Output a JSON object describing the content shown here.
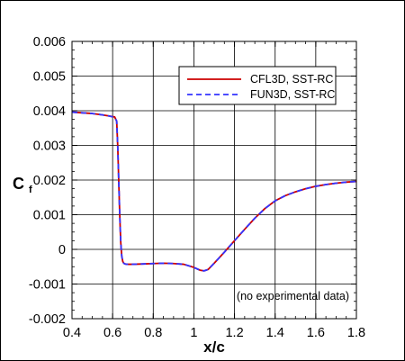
{
  "chart_data": {
    "type": "line",
    "xlabel": "x/c",
    "ylabel_main": "C",
    "ylabel_sub": "f",
    "xlim": [
      0.4,
      1.8
    ],
    "ylim": [
      -0.002,
      0.006
    ],
    "x_ticks": [
      0.4,
      0.6,
      0.8,
      1,
      1.2,
      1.4,
      1.6,
      1.8
    ],
    "x_tick_labels": [
      "0.4",
      "0.6",
      "0.8",
      "1",
      "1.2",
      "1.4",
      "1.6",
      "1.8"
    ],
    "y_ticks": [
      -0.002,
      -0.001,
      0,
      0.001,
      0.002,
      0.003,
      0.004,
      0.005,
      0.006
    ],
    "y_tick_labels": [
      "-0.002",
      "-0.001",
      "0",
      "0.001",
      "0.002",
      "0.003",
      "0.004",
      "0.005",
      "0.006"
    ],
    "grid": true,
    "legend_position": "top-right",
    "annotation": "(no experimental data)",
    "series": [
      {
        "name": "CFL3D, SST-RC",
        "color": "#cc0000",
        "style": "solid",
        "x": [
          0.4,
          0.45,
          0.5,
          0.55,
          0.58,
          0.61,
          0.62,
          0.625,
          0.63,
          0.635,
          0.64,
          0.645,
          0.65,
          0.655,
          0.66,
          0.67,
          0.7,
          0.75,
          0.8,
          0.85,
          0.9,
          0.95,
          1.0,
          1.03,
          1.05,
          1.07,
          1.1,
          1.15,
          1.2,
          1.25,
          1.3,
          1.35,
          1.4,
          1.45,
          1.5,
          1.55,
          1.6,
          1.65,
          1.7,
          1.75,
          1.8
        ],
        "y": [
          0.00396,
          0.00394,
          0.00392,
          0.00388,
          0.00385,
          0.00382,
          0.0037,
          0.003,
          0.002,
          0.001,
          0.0002,
          -0.0002,
          -0.00035,
          -0.0004,
          -0.00042,
          -0.00043,
          -0.00043,
          -0.00042,
          -0.00041,
          -0.0004,
          -0.00041,
          -0.00043,
          -0.00052,
          -0.0006,
          -0.00062,
          -0.00058,
          -0.0004,
          -8e-05,
          0.00025,
          0.00058,
          0.0009,
          0.00118,
          0.0014,
          0.00155,
          0.00166,
          0.00175,
          0.00182,
          0.00187,
          0.00191,
          0.00194,
          0.00196
        ]
      },
      {
        "name": "FUN3D, SST-RC",
        "color": "#3333ff",
        "style": "dashed",
        "x": [
          0.4,
          0.45,
          0.5,
          0.55,
          0.58,
          0.61,
          0.62,
          0.625,
          0.63,
          0.635,
          0.64,
          0.645,
          0.65,
          0.655,
          0.66,
          0.67,
          0.7,
          0.75,
          0.8,
          0.85,
          0.9,
          0.95,
          1.0,
          1.03,
          1.05,
          1.07,
          1.1,
          1.15,
          1.2,
          1.25,
          1.3,
          1.35,
          1.4,
          1.45,
          1.5,
          1.55,
          1.6,
          1.65,
          1.7,
          1.75,
          1.8
        ],
        "y": [
          0.00396,
          0.00394,
          0.00392,
          0.00388,
          0.00385,
          0.00381,
          0.0037,
          0.003,
          0.002,
          0.001,
          0.0002,
          -0.0002,
          -0.00035,
          -0.0004,
          -0.00042,
          -0.00043,
          -0.00043,
          -0.00042,
          -0.00041,
          -0.0004,
          -0.00041,
          -0.00043,
          -0.00052,
          -0.0006,
          -0.00062,
          -0.00058,
          -0.0004,
          -8e-05,
          0.00025,
          0.00058,
          0.0009,
          0.00118,
          0.0014,
          0.00155,
          0.00166,
          0.00175,
          0.00182,
          0.00187,
          0.00191,
          0.00194,
          0.00196
        ]
      }
    ]
  }
}
